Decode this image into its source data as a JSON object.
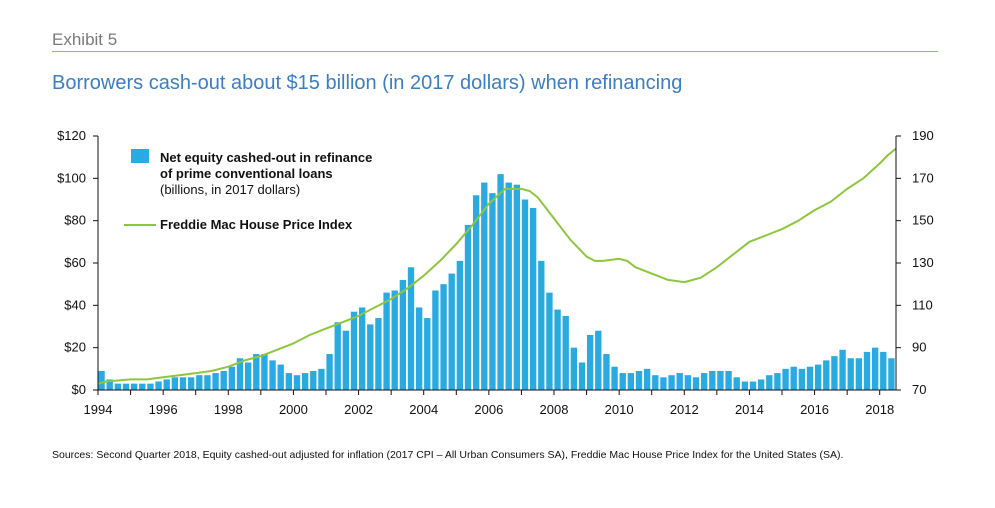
{
  "header": {
    "exhibit": "Exhibit 5",
    "title": "Borrowers cash-out about $15 billion (in 2017 dollars) when refinancing"
  },
  "footer": {
    "sources": "Sources: Second Quarter 2018, Equity cashed-out adjusted for inflation (2017 CPI – All Urban Consumers SA), Freddie Mac House Price Index for the United States (SA)."
  },
  "colors": {
    "bars": "#29abe2",
    "line": "#8dc63f",
    "title": "#3a7ec4"
  },
  "chart_data": {
    "type": "bar",
    "x_label_unit": "quarter",
    "x_start": 1994.0,
    "x_step": 0.25,
    "xlim": [
      1994,
      2018.5
    ],
    "ylim": [
      0,
      120
    ],
    "ylim_right": [
      70,
      190
    ],
    "y_ticks": [
      "$0",
      "$20",
      "$40",
      "$60",
      "$80",
      "$100",
      "$120"
    ],
    "y_tick_values": [
      0,
      20,
      40,
      60,
      80,
      100,
      120
    ],
    "y_right_ticks": [
      "70",
      "90",
      "110",
      "130",
      "150",
      "170",
      "190"
    ],
    "y_right_tick_values": [
      70,
      90,
      110,
      130,
      150,
      170,
      190
    ],
    "x_ticks": [
      "1994",
      "1996",
      "1998",
      "2000",
      "2002",
      "2004",
      "2006",
      "2008",
      "2010",
      "2012",
      "2014",
      "2016",
      "2018"
    ],
    "x_tick_values": [
      1994,
      1996,
      1998,
      2000,
      2002,
      2004,
      2006,
      2008,
      2010,
      2012,
      2014,
      2016,
      2018
    ],
    "legend_position": "top-left",
    "series": [
      {
        "name": "Net equity cashed-out in refinance of prime conventional loans",
        "name_line1": "Net equity cashed-out in refinance",
        "name_line2": "of prime conventional loans",
        "unit": "(billions, in 2017 dollars)",
        "type": "bar",
        "axis": "left",
        "values": [
          9,
          5,
          3,
          3,
          3,
          3,
          3,
          4,
          5,
          6,
          6,
          6,
          7,
          7,
          8,
          9,
          11,
          15,
          13,
          17,
          17,
          14,
          12,
          8,
          7,
          8,
          9,
          10,
          17,
          32,
          28,
          37,
          39,
          31,
          34,
          46,
          47,
          52,
          58,
          39,
          34,
          47,
          50,
          55,
          61,
          78,
          92,
          98,
          93,
          102,
          98,
          97,
          90,
          86,
          61,
          46,
          38,
          35,
          20,
          13,
          26,
          28,
          17,
          11,
          8,
          8,
          9,
          10,
          7,
          6,
          7,
          8,
          7,
          6,
          8,
          9,
          9,
          9,
          6,
          4,
          4,
          5,
          7,
          8,
          10,
          11,
          10,
          11,
          12,
          14,
          16,
          19,
          15,
          15,
          18,
          20,
          18,
          15
        ]
      },
      {
        "name": "Freddie Mac House Price Index",
        "type": "line",
        "axis": "right",
        "points": [
          [
            1994,
            73
          ],
          [
            1994.25,
            74
          ],
          [
            1995,
            75
          ],
          [
            1995.5,
            75
          ],
          [
            1996,
            76
          ],
          [
            1996.5,
            77
          ],
          [
            1997,
            78
          ],
          [
            1997.5,
            79
          ],
          [
            1998,
            81
          ],
          [
            1998.5,
            84
          ],
          [
            1999,
            86
          ],
          [
            1999.5,
            89
          ],
          [
            2000,
            92
          ],
          [
            2000.5,
            96
          ],
          [
            2001,
            99
          ],
          [
            2001.5,
            102
          ],
          [
            2002,
            105
          ],
          [
            2002.5,
            109
          ],
          [
            2003,
            113
          ],
          [
            2003.5,
            118
          ],
          [
            2004,
            124
          ],
          [
            2004.5,
            131
          ],
          [
            2005,
            139
          ],
          [
            2005.5,
            148
          ],
          [
            2006,
            158
          ],
          [
            2006.5,
            165
          ],
          [
            2007,
            165
          ],
          [
            2007.25,
            164
          ],
          [
            2007.5,
            161
          ],
          [
            2008,
            151
          ],
          [
            2008.5,
            141
          ],
          [
            2009,
            133
          ],
          [
            2009.25,
            131
          ],
          [
            2009.5,
            131
          ],
          [
            2010,
            132
          ],
          [
            2010.25,
            131
          ],
          [
            2010.5,
            128
          ],
          [
            2011,
            125
          ],
          [
            2011.5,
            122
          ],
          [
            2012,
            121
          ],
          [
            2012.5,
            123
          ],
          [
            2013,
            128
          ],
          [
            2013.5,
            134
          ],
          [
            2014,
            140
          ],
          [
            2014.5,
            143
          ],
          [
            2015,
            146
          ],
          [
            2015.5,
            150
          ],
          [
            2016,
            155
          ],
          [
            2016.5,
            159
          ],
          [
            2017,
            165
          ],
          [
            2017.5,
            170
          ],
          [
            2018,
            177
          ],
          [
            2018.25,
            181
          ],
          [
            2018.5,
            184
          ]
        ]
      }
    ]
  }
}
